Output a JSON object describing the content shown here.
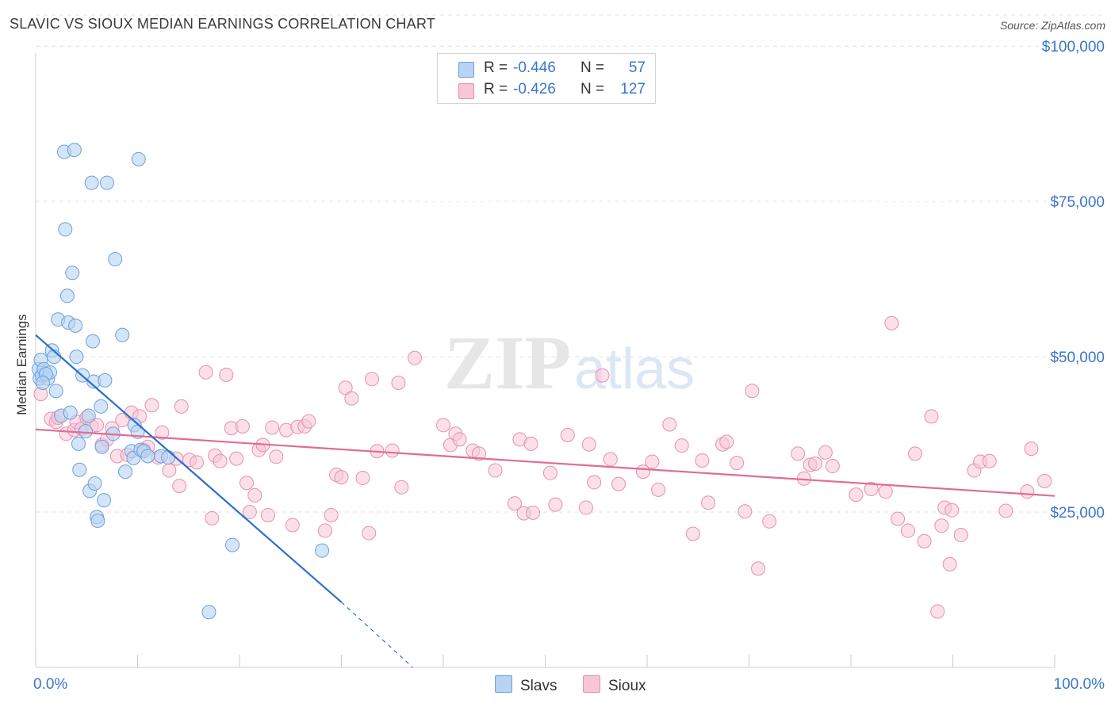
{
  "title": "SLAVIC VS SIOUX MEDIAN EARNINGS CORRELATION CHART",
  "source": "Source: ZipAtlas.com",
  "watermark": {
    "zip": "ZIP",
    "atlas": "atlas"
  },
  "legend": {
    "series": [
      {
        "r_label": "R =",
        "r_value": "-0.446",
        "n_label": "N =",
        "n_value": "57"
      },
      {
        "r_label": "R =",
        "r_value": "-0.426",
        "n_label": "N =",
        "n_value": "127"
      }
    ]
  },
  "bottom_legend": {
    "slavs": "Slavs",
    "sioux": "Sioux"
  },
  "colors": {
    "slavs_fill": "#b8d3f4",
    "slavs_stroke": "#6d9fdc",
    "slavs_line": "#2c6fcf",
    "sioux_fill": "#f8c6d7",
    "sioux_stroke": "#e68fae",
    "sioux_line": "#e06c95",
    "axis_label": "#3b77c9",
    "grid": "#e2e2e2"
  },
  "chart_data": {
    "type": "scatter",
    "title": "SLAVIC VS SIOUX MEDIAN EARNINGS CORRELATION CHART",
    "xlabel": "",
    "ylabel": "Median Earnings",
    "xlim": [
      0,
      100
    ],
    "ylim": [
      0,
      105000
    ],
    "x_tick_labels": [
      "0.0%",
      "100.0%"
    ],
    "y_ticks": [
      25000,
      50000,
      75000,
      100000
    ],
    "y_tick_labels": [
      "$25,000",
      "$50,000",
      "$75,000",
      "$100,000"
    ],
    "series": [
      {
        "name": "Slavs",
        "r": -0.446,
        "n": 57,
        "trend": {
          "x0": 0,
          "y0": 53500,
          "x1": 30,
          "y1": 10500,
          "dash_to_x": 37,
          "dash_to_y": 0
        },
        "points": [
          [
            0.3,
            48000
          ],
          [
            0.4,
            46500
          ],
          [
            0.5,
            49500
          ],
          [
            0.6,
            47000
          ],
          [
            0.8,
            48000
          ],
          [
            1.2,
            46500
          ],
          [
            1.4,
            47500
          ],
          [
            1.6,
            51000
          ],
          [
            1.8,
            50000
          ],
          [
            2.0,
            44500
          ],
          [
            2.2,
            56000
          ],
          [
            2.5,
            40500
          ],
          [
            2.8,
            83000
          ],
          [
            2.9,
            70500
          ],
          [
            3.1,
            59800
          ],
          [
            3.2,
            55500
          ],
          [
            3.4,
            41000
          ],
          [
            3.6,
            63500
          ],
          [
            3.8,
            83300
          ],
          [
            3.9,
            55000
          ],
          [
            4.0,
            50000
          ],
          [
            4.2,
            36000
          ],
          [
            4.3,
            31800
          ],
          [
            4.6,
            47000
          ],
          [
            4.9,
            38000
          ],
          [
            5.2,
            40500
          ],
          [
            5.3,
            28400
          ],
          [
            5.5,
            78000
          ],
          [
            5.6,
            52500
          ],
          [
            5.7,
            46000
          ],
          [
            5.8,
            29600
          ],
          [
            6.0,
            24200
          ],
          [
            6.1,
            23600
          ],
          [
            6.4,
            42000
          ],
          [
            6.5,
            35500
          ],
          [
            6.7,
            26900
          ],
          [
            6.8,
            46200
          ],
          [
            7.0,
            78000
          ],
          [
            7.6,
            37600
          ],
          [
            7.8,
            65700
          ],
          [
            8.5,
            53500
          ],
          [
            8.8,
            31500
          ],
          [
            9.4,
            34800
          ],
          [
            9.6,
            33700
          ],
          [
            9.7,
            39000
          ],
          [
            10.0,
            37900
          ],
          [
            10.1,
            81800
          ],
          [
            10.3,
            35000
          ],
          [
            10.6,
            34800
          ],
          [
            11.0,
            34000
          ],
          [
            12.3,
            34000
          ],
          [
            13.0,
            33800
          ],
          [
            17.0,
            8900
          ],
          [
            19.3,
            19700
          ],
          [
            28.1,
            18800
          ],
          [
            1.0,
            47200
          ],
          [
            0.7,
            45800
          ]
        ]
      },
      {
        "name": "Sioux",
        "r": -0.426,
        "n": 127,
        "trend": {
          "x0": 0,
          "y0": 38300,
          "x1": 100,
          "y1": 27600
        },
        "points": [
          [
            0.5,
            44000
          ],
          [
            1.5,
            40000
          ],
          [
            2.0,
            39500
          ],
          [
            2.2,
            40200
          ],
          [
            3.0,
            37600
          ],
          [
            3.8,
            38200
          ],
          [
            4.0,
            39500
          ],
          [
            4.5,
            38400
          ],
          [
            5.0,
            40200
          ],
          [
            5.5,
            38800
          ],
          [
            6.0,
            39000
          ],
          [
            6.5,
            35800
          ],
          [
            7.0,
            36700
          ],
          [
            7.5,
            38500
          ],
          [
            8.0,
            34000
          ],
          [
            8.5,
            39800
          ],
          [
            9.0,
            34200
          ],
          [
            9.4,
            41000
          ],
          [
            10.2,
            40400
          ],
          [
            10.6,
            35000
          ],
          [
            11.0,
            35500
          ],
          [
            11.4,
            42200
          ],
          [
            12.0,
            33800
          ],
          [
            12.4,
            37800
          ],
          [
            13.1,
            31700
          ],
          [
            13.8,
            33600
          ],
          [
            14.1,
            29200
          ],
          [
            14.3,
            42000
          ],
          [
            15.1,
            33400
          ],
          [
            15.8,
            33000
          ],
          [
            16.7,
            47500
          ],
          [
            17.3,
            24000
          ],
          [
            17.6,
            34100
          ],
          [
            18.1,
            33200
          ],
          [
            18.7,
            47100
          ],
          [
            19.2,
            38500
          ],
          [
            19.7,
            33600
          ],
          [
            20.3,
            38800
          ],
          [
            20.7,
            29700
          ],
          [
            21.0,
            25000
          ],
          [
            21.5,
            27700
          ],
          [
            21.9,
            35000
          ],
          [
            22.3,
            35800
          ],
          [
            22.8,
            24500
          ],
          [
            23.2,
            38600
          ],
          [
            23.6,
            33900
          ],
          [
            24.6,
            38200
          ],
          [
            25.2,
            22900
          ],
          [
            25.7,
            38700
          ],
          [
            26.4,
            38800
          ],
          [
            26.8,
            39600
          ],
          [
            28.4,
            22000
          ],
          [
            29.0,
            24500
          ],
          [
            29.5,
            31000
          ],
          [
            30.0,
            30600
          ],
          [
            30.4,
            45000
          ],
          [
            31.0,
            43300
          ],
          [
            32.1,
            30500
          ],
          [
            32.7,
            21600
          ],
          [
            33.0,
            46400
          ],
          [
            33.5,
            34800
          ],
          [
            35.0,
            34900
          ],
          [
            35.6,
            45800
          ],
          [
            35.9,
            29000
          ],
          [
            37.2,
            49800
          ],
          [
            40.0,
            39000
          ],
          [
            40.7,
            35800
          ],
          [
            41.2,
            37600
          ],
          [
            41.6,
            36700
          ],
          [
            42.9,
            34900
          ],
          [
            43.5,
            34400
          ],
          [
            45.1,
            31700
          ],
          [
            47.0,
            26400
          ],
          [
            47.5,
            36700
          ],
          [
            47.9,
            24800
          ],
          [
            48.6,
            36000
          ],
          [
            48.8,
            24900
          ],
          [
            50.5,
            31300
          ],
          [
            51.0,
            26200
          ],
          [
            52.2,
            37400
          ],
          [
            54.0,
            25700
          ],
          [
            54.3,
            35900
          ],
          [
            54.8,
            29800
          ],
          [
            55.6,
            47000
          ],
          [
            56.4,
            33500
          ],
          [
            57.2,
            29500
          ],
          [
            59.6,
            31500
          ],
          [
            60.5,
            33100
          ],
          [
            61.1,
            28600
          ],
          [
            62.2,
            39100
          ],
          [
            63.4,
            35700
          ],
          [
            64.5,
            21500
          ],
          [
            65.4,
            33300
          ],
          [
            66.0,
            26500
          ],
          [
            67.4,
            35900
          ],
          [
            67.8,
            36300
          ],
          [
            68.8,
            32900
          ],
          [
            69.6,
            25100
          ],
          [
            70.3,
            44500
          ],
          [
            70.9,
            15900
          ],
          [
            72.0,
            23500
          ],
          [
            74.8,
            34400
          ],
          [
            75.4,
            30400
          ],
          [
            76.0,
            32600
          ],
          [
            76.5,
            32800
          ],
          [
            77.5,
            34600
          ],
          [
            78.2,
            32400
          ],
          [
            80.5,
            27800
          ],
          [
            82.0,
            28700
          ],
          [
            83.4,
            28300
          ],
          [
            84.0,
            55400
          ],
          [
            84.6,
            23900
          ],
          [
            85.6,
            22000
          ],
          [
            86.3,
            34400
          ],
          [
            87.2,
            20300
          ],
          [
            87.9,
            40400
          ],
          [
            88.5,
            9000
          ],
          [
            88.9,
            22800
          ],
          [
            89.2,
            25700
          ],
          [
            89.7,
            16600
          ],
          [
            89.9,
            25300
          ],
          [
            90.8,
            21300
          ],
          [
            92.1,
            31700
          ],
          [
            92.7,
            33100
          ],
          [
            93.6,
            33200
          ],
          [
            95.2,
            25200
          ],
          [
            97.3,
            28300
          ],
          [
            97.7,
            35200
          ],
          [
            99.0,
            30000
          ]
        ]
      }
    ]
  }
}
